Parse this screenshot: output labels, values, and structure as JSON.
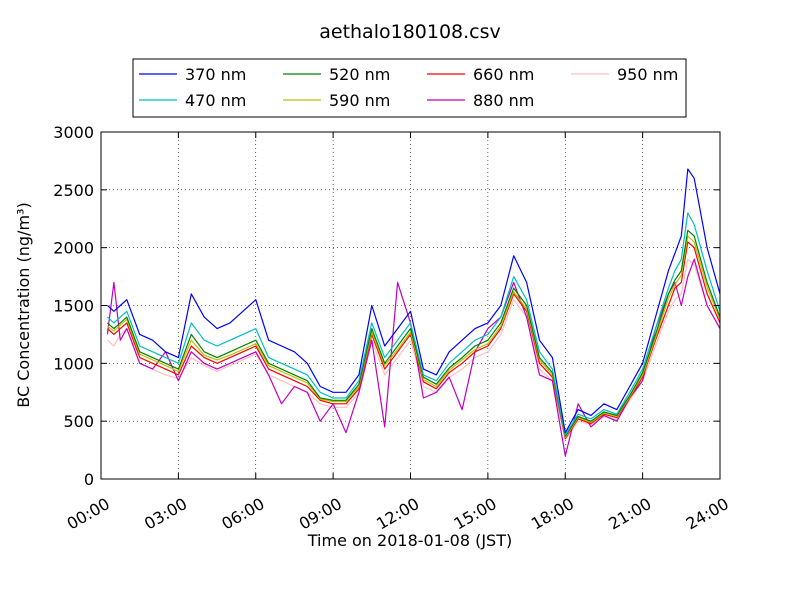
{
  "chart_data": {
    "type": "line",
    "title": "aethalo180108.csv",
    "xlabel": "Time on 2018-01-08 (JST)",
    "ylabel": "BC Concentration (ng/m³)",
    "ylim": [
      0,
      3000
    ],
    "xlim_hours": [
      0,
      24
    ],
    "x_ticks": [
      "00:00",
      "03:00",
      "06:00",
      "09:00",
      "12:00",
      "15:00",
      "18:00",
      "21:00",
      "24:00"
    ],
    "y_ticks": [
      "0",
      "500",
      "1000",
      "1500",
      "2000",
      "2500",
      "3000"
    ],
    "grid": true,
    "legend_position": "top-center",
    "x_hours": [
      0.25,
      0.5,
      0.75,
      1,
      1.5,
      2,
      2.5,
      3,
      3.5,
      4,
      4.5,
      5,
      5.5,
      6,
      6.5,
      7,
      7.5,
      8,
      8.5,
      9,
      9.5,
      10,
      10.5,
      11,
      11.5,
      12,
      12.5,
      13,
      13.5,
      14,
      14.5,
      15,
      15.5,
      16,
      16.5,
      17,
      17.5,
      18,
      18.5,
      19,
      19.5,
      20,
      20.5,
      21,
      21.5,
      22,
      22.25,
      22.5,
      22.75,
      23,
      23.5,
      24
    ],
    "series": [
      {
        "name": "370 nm",
        "color": "#0000ff",
        "values": [
          1500,
          1450,
          1500,
          1550,
          1250,
          1200,
          1100,
          1050,
          1600,
          1400,
          1300,
          1350,
          1450,
          1550,
          1200,
          1150,
          1100,
          1000,
          800,
          750,
          750,
          900,
          1500,
          1150,
          1300,
          1450,
          950,
          900,
          1100,
          1200,
          1300,
          1350,
          1500,
          1930,
          1700,
          1200,
          1050,
          400,
          600,
          550,
          650,
          600,
          800,
          1000,
          1400,
          1800,
          1950,
          2100,
          2680,
          2600,
          2000,
          1600
        ]
      },
      {
        "name": "470 nm",
        "color": "#00bfbf",
        "values": [
          1400,
          1350,
          1400,
          1450,
          1150,
          1100,
          1050,
          1000,
          1350,
          1200,
          1150,
          1200,
          1250,
          1300,
          1050,
          1000,
          950,
          900,
          750,
          700,
          700,
          850,
          1350,
          1050,
          1200,
          1350,
          900,
          850,
          1000,
          1100,
          1200,
          1250,
          1400,
          1750,
          1550,
          1100,
          950,
          380,
          560,
          520,
          600,
          560,
          750,
          950,
          1300,
          1650,
          1800,
          1900,
          2300,
          2200,
          1800,
          1450
        ]
      },
      {
        "name": "520 nm",
        "color": "#008000",
        "values": [
          1350,
          1300,
          1350,
          1400,
          1100,
          1050,
          1000,
          950,
          1250,
          1100,
          1050,
          1100,
          1150,
          1200,
          1000,
          950,
          900,
          850,
          700,
          680,
          680,
          820,
          1300,
          1000,
          1150,
          1300,
          880,
          820,
          960,
          1050,
          1150,
          1200,
          1350,
          1650,
          1500,
          1050,
          920,
          370,
          540,
          500,
          580,
          550,
          720,
          920,
          1250,
          1600,
          1720,
          1800,
          2150,
          2100,
          1700,
          1400
        ]
      },
      {
        "name": "590 nm",
        "color": "#bfbf00",
        "values": [
          1320,
          1280,
          1330,
          1380,
          1080,
          1030,
          980,
          930,
          1200,
          1070,
          1030,
          1070,
          1120,
          1170,
          980,
          930,
          880,
          830,
          690,
          670,
          670,
          800,
          1270,
          980,
          1120,
          1270,
          860,
          800,
          940,
          1030,
          1120,
          1170,
          1320,
          1620,
          1470,
          1030,
          900,
          360,
          530,
          490,
          570,
          540,
          710,
          900,
          1220,
          1560,
          1680,
          1760,
          2100,
          2050,
          1660,
          1380
        ]
      },
      {
        "name": "660 nm",
        "color": "#ff0000",
        "values": [
          1300,
          1250,
          1300,
          1350,
          1050,
          1000,
          950,
          900,
          1150,
          1050,
          1000,
          1050,
          1100,
          1150,
          950,
          900,
          850,
          800,
          680,
          650,
          650,
          780,
          1250,
          950,
          1100,
          1250,
          840,
          780,
          920,
          1000,
          1100,
          1150,
          1300,
          1600,
          1450,
          1000,
          880,
          350,
          520,
          480,
          560,
          530,
          700,
          880,
          1200,
          1500,
          1650,
          1700,
          2050,
          2000,
          1600,
          1350
        ]
      },
      {
        "name": "880 nm",
        "color": "#bf00bf",
        "values": [
          1250,
          1700,
          1200,
          1300,
          1000,
          950,
          1100,
          850,
          1100,
          1000,
          950,
          1000,
          1050,
          1100,
          900,
          650,
          800,
          750,
          500,
          650,
          400,
          750,
          1200,
          450,
          1700,
          1350,
          700,
          750,
          880,
          600,
          1100,
          1300,
          1400,
          1700,
          1400,
          900,
          850,
          200,
          650,
          450,
          550,
          500,
          700,
          850,
          1300,
          1600,
          1700,
          1500,
          1750,
          1900,
          1500,
          1300
        ]
      },
      {
        "name": "950 nm",
        "color": "#ffbfbf",
        "values": [
          1200,
          1150,
          1250,
          1300,
          1000,
          950,
          900,
          870,
          1050,
          980,
          930,
          980,
          1030,
          1080,
          900,
          850,
          800,
          750,
          650,
          620,
          620,
          740,
          1200,
          900,
          1050,
          1200,
          800,
          750,
          880,
          950,
          1050,
          1100,
          1250,
          1550,
          1400,
          950,
          850,
          340,
          500,
          470,
          540,
          510,
          680,
          850,
          1150,
          1450,
          1550,
          1600,
          1900,
          1850,
          1500,
          1300
        ]
      }
    ]
  }
}
